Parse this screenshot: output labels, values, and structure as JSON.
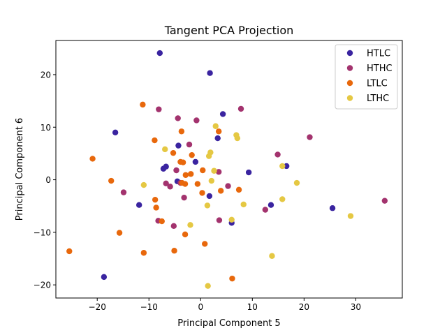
{
  "chart_data": {
    "type": "scatter",
    "title": "Tangent PCA Projection",
    "xlabel": "Principal Component 5",
    "ylabel": "Principal Component 6",
    "xlim": [
      -28,
      39
    ],
    "ylim": [
      -22.5,
      26.5
    ],
    "xticks": [
      -20,
      -10,
      0,
      10,
      20,
      30
    ],
    "yticks": [
      -20,
      -10,
      0,
      10,
      20
    ],
    "grid": false,
    "legend_placement": "top-right",
    "series": [
      {
        "name": "HTLC",
        "color": "#3a24a0",
        "points": [
          [
            -7.9,
            24.1
          ],
          [
            1.8,
            20.3
          ],
          [
            4.3,
            12.5
          ],
          [
            -16.5,
            9.0
          ],
          [
            3.3,
            7.9
          ],
          [
            -4.3,
            6.5
          ],
          [
            -6.7,
            2.5
          ],
          [
            -7.2,
            2.1
          ],
          [
            -1.0,
            3.4
          ],
          [
            9.3,
            1.4
          ],
          [
            16.6,
            2.6
          ],
          [
            -4.5,
            -0.3
          ],
          [
            1.7,
            -3.1
          ],
          [
            13.6,
            -4.8
          ],
          [
            25.5,
            -5.4
          ],
          [
            -11.9,
            -4.8
          ],
          [
            6.0,
            -8.2
          ],
          [
            -18.7,
            -18.5
          ]
        ]
      },
      {
        "name": "HTHC",
        "color": "#a3336e",
        "points": [
          [
            -8.1,
            13.4
          ],
          [
            7.8,
            13.5
          ],
          [
            -4.4,
            11.7
          ],
          [
            -0.8,
            11.3
          ],
          [
            21.1,
            8.1
          ],
          [
            -2.2,
            6.7
          ],
          [
            14.9,
            4.8
          ],
          [
            -4.7,
            1.8
          ],
          [
            3.5,
            1.5
          ],
          [
            -6.7,
            -0.7
          ],
          [
            -5.9,
            -1.3
          ],
          [
            -3.9,
            -0.6
          ],
          [
            5.3,
            -1.2
          ],
          [
            -14.9,
            -2.4
          ],
          [
            -3.2,
            -3.4
          ],
          [
            35.6,
            -4.0
          ],
          [
            12.5,
            -5.7
          ],
          [
            3.6,
            -7.7
          ],
          [
            -5.2,
            -8.8
          ],
          [
            -8.2,
            -7.8
          ]
        ]
      },
      {
        "name": "LTLC",
        "color": "#e8680c",
        "points": [
          [
            -11.2,
            14.3
          ],
          [
            -3.7,
            9.2
          ],
          [
            3.5,
            9.2
          ],
          [
            -8.9,
            7.5
          ],
          [
            -5.3,
            5.1
          ],
          [
            -1.7,
            4.7
          ],
          [
            -20.9,
            4.0
          ],
          [
            -3.9,
            3.4
          ],
          [
            -3.4,
            3.3
          ],
          [
            -2.9,
            0.9
          ],
          [
            -1.9,
            1.1
          ],
          [
            0.4,
            1.8
          ],
          [
            -17.3,
            -0.2
          ],
          [
            -3.6,
            -0.6
          ],
          [
            -3.0,
            -0.8
          ],
          [
            -0.6,
            -0.8
          ],
          [
            0.3,
            -2.5
          ],
          [
            3.9,
            -2.1
          ],
          [
            7.4,
            -1.9
          ],
          [
            -8.8,
            -3.8
          ],
          [
            -8.6,
            -5.3
          ],
          [
            -15.7,
            -10.1
          ],
          [
            -7.5,
            -7.9
          ],
          [
            -3.0,
            -10.4
          ],
          [
            0.8,
            -12.2
          ],
          [
            -25.4,
            -13.6
          ],
          [
            -11.0,
            -13.9
          ],
          [
            -5.1,
            -13.5
          ],
          [
            6.1,
            -18.8
          ]
        ]
      },
      {
        "name": "LTHC",
        "color": "#e5c843",
        "points": [
          [
            2.9,
            10.2
          ],
          [
            6.9,
            8.5
          ],
          [
            7.1,
            7.9
          ],
          [
            -6.9,
            5.8
          ],
          [
            1.9,
            5.2
          ],
          [
            1.6,
            4.5
          ],
          [
            2.6,
            1.7
          ],
          [
            15.8,
            2.6
          ],
          [
            -11.0,
            -1.0
          ],
          [
            2.1,
            -0.2
          ],
          [
            18.6,
            -0.6
          ],
          [
            8.3,
            -4.7
          ],
          [
            15.8,
            -3.7
          ],
          [
            1.3,
            -4.9
          ],
          [
            6.0,
            -7.6
          ],
          [
            -2.0,
            -8.6
          ],
          [
            29.0,
            -6.9
          ],
          [
            13.8,
            -14.5
          ],
          [
            1.4,
            -20.2
          ]
        ]
      }
    ]
  }
}
